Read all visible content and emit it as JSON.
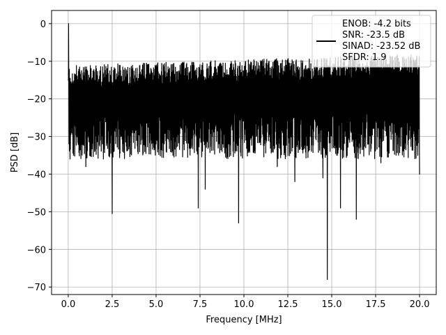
{
  "chart_data": {
    "type": "line",
    "xlabel": "Frequency [MHz]",
    "ylabel": "PSD [dB]",
    "xlim": [
      -0.95,
      20.95
    ],
    "ylim": [
      -72,
      3.5
    ],
    "xticks": [
      0.0,
      2.5,
      5.0,
      7.5,
      10.0,
      12.5,
      15.0,
      17.5,
      20.0
    ],
    "xtick_labels": [
      "0.0",
      "2.5",
      "5.0",
      "7.5",
      "10.0",
      "12.5",
      "15.0",
      "17.5",
      "20.0"
    ],
    "yticks": [
      0,
      -10,
      -20,
      -30,
      -40,
      -50,
      -60,
      -70
    ],
    "ytick_labels": [
      "0",
      "−10",
      "−20",
      "−30",
      "−40",
      "−50",
      "−60",
      "−70"
    ],
    "grid": true,
    "legend_position": "top-right",
    "series": [
      {
        "color": "#000000",
        "x": [
          0.0,
          0.02,
          0.05,
          0.1,
          0.2,
          0.3,
          0.5,
          1.0,
          1.5,
          2.0,
          2.5,
          3.0,
          4.0,
          5.0,
          6.0,
          7.0,
          7.4,
          7.8,
          8.0,
          9.0,
          9.7,
          10.0,
          11.0,
          11.9,
          12.0,
          12.9,
          13.0,
          14.0,
          14.5,
          14.75,
          15.0,
          15.5,
          16.0,
          16.4,
          17.0,
          17.8,
          18.0,
          19.0,
          19.9,
          20.0
        ],
        "y": [
          -15,
          0,
          -28,
          -36,
          -16,
          -35,
          -20,
          -38,
          -34,
          -36,
          -50.5,
          -30,
          -22,
          -32,
          -22,
          -33,
          -49,
          -44,
          -28,
          -33,
          -53,
          -23,
          -20,
          -38,
          -20,
          -42,
          -20,
          -18,
          -41,
          -68,
          -20,
          -49,
          -19,
          -52,
          -18,
          -37,
          -18,
          -25,
          -35,
          -40
        ]
      }
    ],
    "legend": [
      "ENOB: -4.2 bits",
      "SNR: -23.5 dB",
      "SINAD: -23.52 dB",
      "SFDR: 1.9"
    ]
  }
}
